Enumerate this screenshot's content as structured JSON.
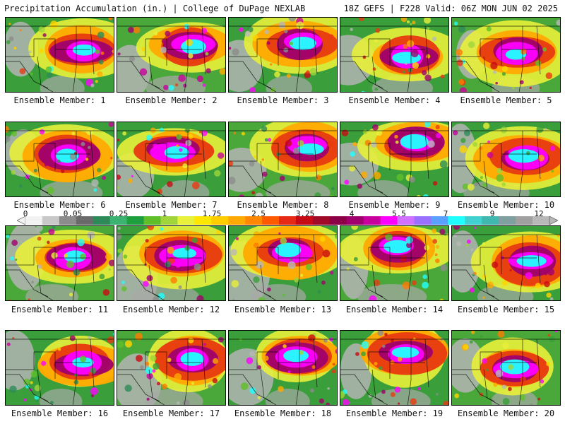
{
  "header": {
    "title_left": "Precipitation Accumulation (in.) | College of DuPage NEXLAB",
    "title_right": "18Z GEFS | F228 Valid: 06Z MON JUN 02 2025"
  },
  "colorbar": {
    "ticks": [
      "0",
      "0.05",
      "0.25",
      "1",
      "1.75",
      "2.5",
      "3.25",
      "4",
      "5.5",
      "7",
      "9",
      "12"
    ],
    "colors": [
      "#f2f2f2",
      "#c8c8c8",
      "#8c8c8c",
      "#6a6a6a",
      "#2e8b57",
      "#3cb371",
      "#1e9e3c",
      "#5fbf2a",
      "#9fd43a",
      "#e8f03a",
      "#ffe600",
      "#ffcc00",
      "#ffaa00",
      "#ff8800",
      "#ff5a00",
      "#e62814",
      "#c80a14",
      "#a00a28",
      "#8b0046",
      "#a0006e",
      "#c8009c",
      "#ff00ff",
      "#d070ff",
      "#9a70ff",
      "#5aa0ff",
      "#20ffff",
      "#40d0d0",
      "#40b8b0",
      "#80a0a0",
      "#a0a0a0",
      "#b8b8b8"
    ]
  },
  "members": [
    {
      "label": "Ensemble Member: 1"
    },
    {
      "label": "Ensemble Member: 2"
    },
    {
      "label": "Ensemble Member: 3"
    },
    {
      "label": "Ensemble Member: 4"
    },
    {
      "label": "Ensemble Member: 5"
    },
    {
      "label": "Ensemble Member: 6"
    },
    {
      "label": "Ensemble Member: 7"
    },
    {
      "label": "Ensemble Member: 8"
    },
    {
      "label": "Ensemble Member: 9"
    },
    {
      "label": "Ensemble Member: 10"
    },
    {
      "label": "Ensemble Member: 11"
    },
    {
      "label": "Ensemble Member: 12"
    },
    {
      "label": "Ensemble Member: 13"
    },
    {
      "label": "Ensemble Member: 14"
    },
    {
      "label": "Ensemble Member: 15"
    },
    {
      "label": "Ensemble Member: 16"
    },
    {
      "label": "Ensemble Member: 17"
    },
    {
      "label": "Ensemble Member: 18"
    },
    {
      "label": "Ensemble Member: 19"
    },
    {
      "label": "Ensemble Member: 20"
    }
  ]
}
